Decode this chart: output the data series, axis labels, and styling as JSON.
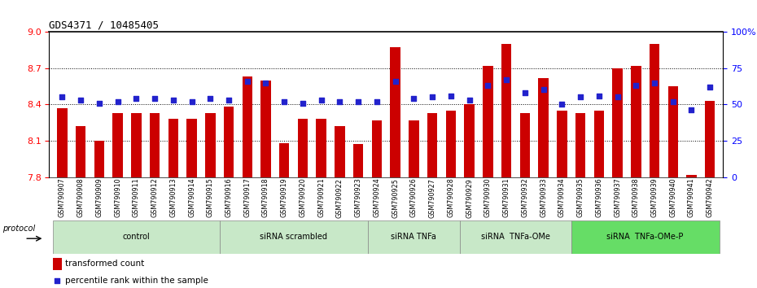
{
  "title": "GDS4371 / 10485405",
  "samples": [
    "GSM790907",
    "GSM790908",
    "GSM790909",
    "GSM790910",
    "GSM790911",
    "GSM790912",
    "GSM790913",
    "GSM790914",
    "GSM790915",
    "GSM790916",
    "GSM790917",
    "GSM790918",
    "GSM790919",
    "GSM790920",
    "GSM790921",
    "GSM790922",
    "GSM790923",
    "GSM790924",
    "GSM790925",
    "GSM790926",
    "GSM790927",
    "GSM790928",
    "GSM790929",
    "GSM790930",
    "GSM790931",
    "GSM790932",
    "GSM790933",
    "GSM790934",
    "GSM790935",
    "GSM790936",
    "GSM790937",
    "GSM790938",
    "GSM790939",
    "GSM790940",
    "GSM790941",
    "GSM790942"
  ],
  "bar_values": [
    8.37,
    8.22,
    8.1,
    8.33,
    8.33,
    8.33,
    8.28,
    8.28,
    8.33,
    8.38,
    8.63,
    8.6,
    8.08,
    8.28,
    8.28,
    8.22,
    8.07,
    8.27,
    8.87,
    8.27,
    8.33,
    8.35,
    8.4,
    8.72,
    8.9,
    8.33,
    8.62,
    8.35,
    8.33,
    8.35,
    8.7,
    8.72,
    8.9,
    8.55,
    7.82,
    8.43
  ],
  "dot_values": [
    55,
    53,
    51,
    52,
    54,
    54,
    53,
    52,
    54,
    53,
    66,
    65,
    52,
    51,
    53,
    52,
    52,
    52,
    66,
    54,
    55,
    56,
    53,
    63,
    67,
    58,
    60,
    50,
    55,
    56,
    55,
    63,
    65,
    52,
    46,
    62
  ],
  "groups": [
    {
      "label": "control",
      "start": 0,
      "end": 8
    },
    {
      "label": "siRNA scrambled",
      "start": 9,
      "end": 16
    },
    {
      "label": "siRNA TNFa",
      "start": 17,
      "end": 21
    },
    {
      "label": "siRNA  TNFa-OMe",
      "start": 22,
      "end": 27
    },
    {
      "label": "siRNA  TNFa-OMe-P",
      "start": 28,
      "end": 35
    }
  ],
  "group_fills": [
    "#c8e8c8",
    "#c8e8c8",
    "#c8e8c8",
    "#c8e8c8",
    "#66dd66"
  ],
  "ymin": 7.8,
  "ymax": 9.0,
  "yticks_left": [
    7.8,
    8.1,
    8.4,
    8.7,
    9.0
  ],
  "yticks_right": [
    0,
    25,
    50,
    75,
    100
  ],
  "bar_color": "#cc0000",
  "dot_color": "#2222cc",
  "bar_bottom": 7.8,
  "protocol_label": "protocol",
  "legend_bar_label": "transformed count",
  "legend_dot_label": "percentile rank within the sample"
}
